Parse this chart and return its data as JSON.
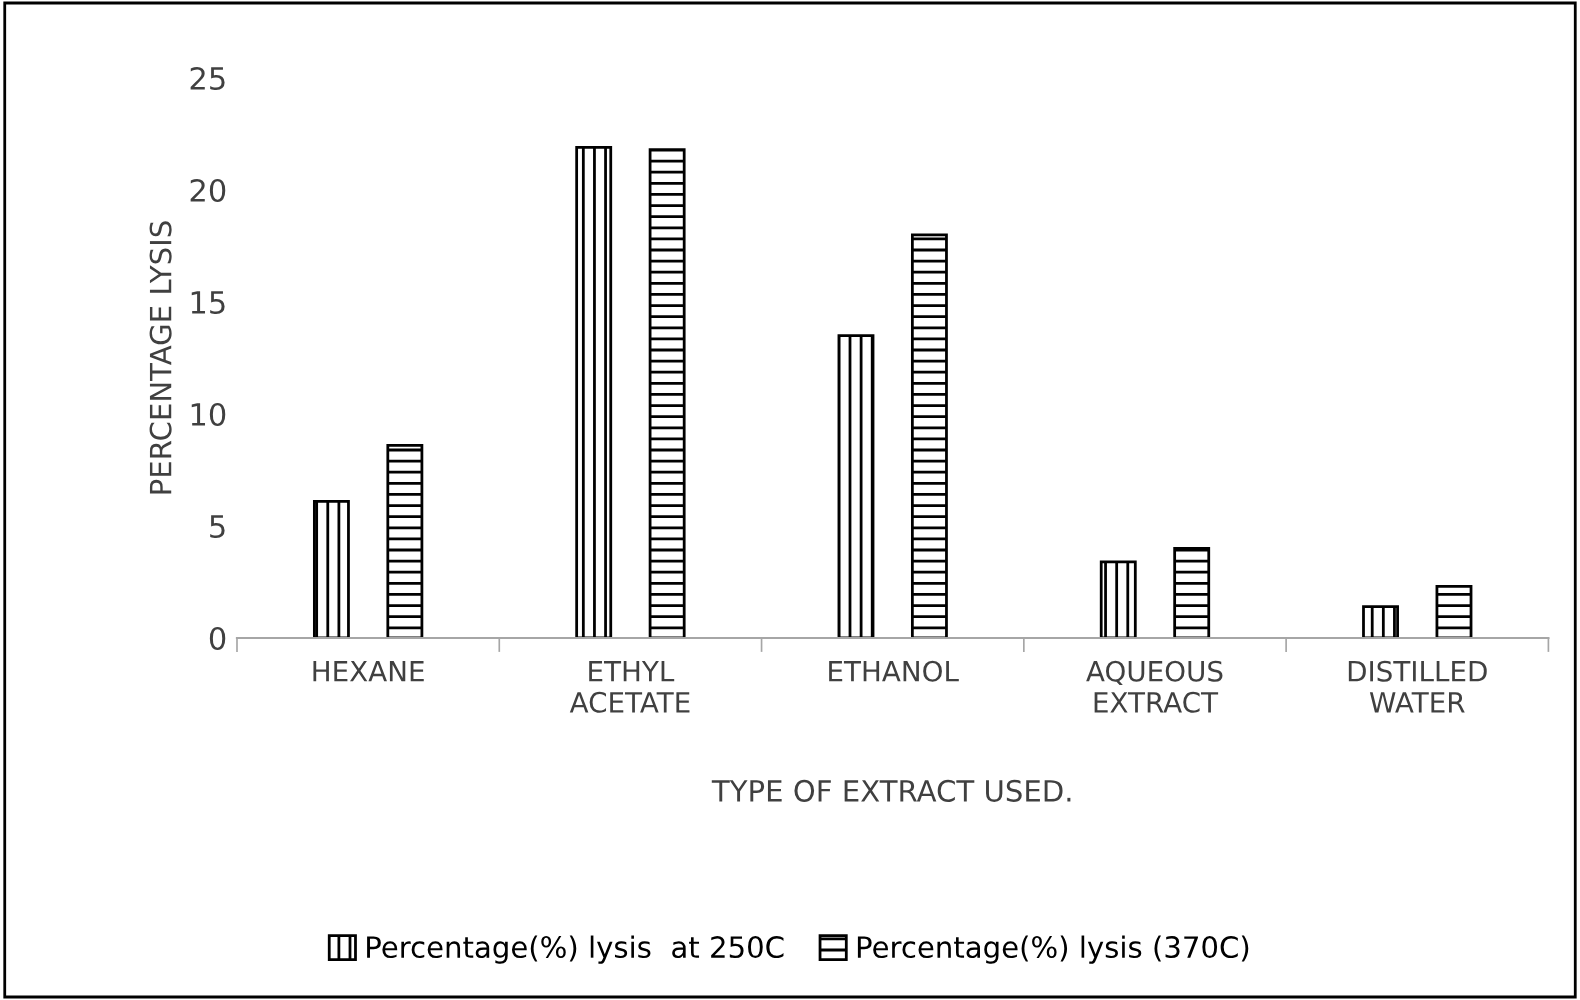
{
  "chart_data": {
    "type": "bar",
    "xlabel": "TYPE OF EXTRACT USED.",
    "ylabel": "PERCENTAGE LYSIS",
    "categories": [
      "HEXANE",
      "ETHYL\nACETATE",
      "ETHANOL",
      "AQUEOUS\nEXTRACT",
      "DISTILLED\nWATER"
    ],
    "series": [
      {
        "name": "Percentage(%) lysis  at 250C",
        "color": "#000000",
        "values": [
          6.1,
          21.9,
          13.5,
          3.4,
          1.4
        ]
      },
      {
        "name": "Percentage(%) lysis (370C)",
        "color": "#000000",
        "values": [
          8.6,
          21.8,
          18.0,
          4.0,
          2.3
        ]
      }
    ],
    "ylim": [
      0,
      25
    ],
    "yticks": [
      0,
      5,
      10,
      15,
      20,
      25
    ],
    "grid": false,
    "legend": "bottom"
  }
}
